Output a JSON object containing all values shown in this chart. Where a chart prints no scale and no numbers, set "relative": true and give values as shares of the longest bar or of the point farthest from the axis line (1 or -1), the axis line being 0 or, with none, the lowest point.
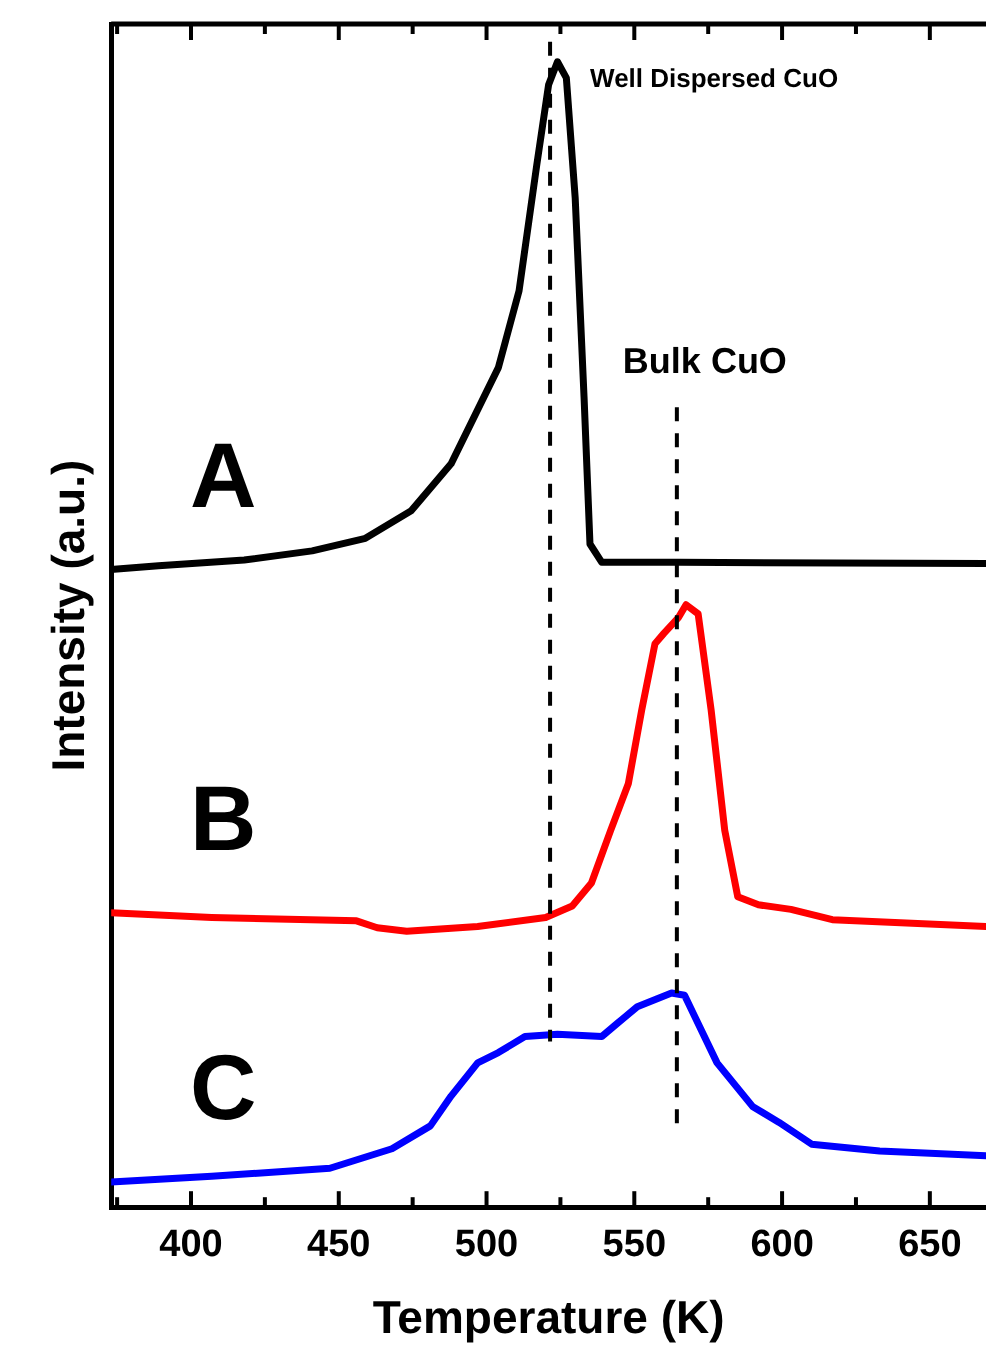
{
  "chart_data": {
    "type": "line",
    "relative": true,
    "xlabel": "Temperature (K)",
    "ylabel": "Intensity (a.u.)",
    "xlim": [
      373,
      669
    ],
    "xticks": [
      {
        "value": 375,
        "label": null
      },
      400,
      {
        "value": 425,
        "label": null
      },
      450,
      {
        "value": 475,
        "label": null
      },
      500,
      {
        "value": 525,
        "label": null
      },
      550,
      {
        "value": 575,
        "label": null
      },
      600,
      {
        "value": 625,
        "label": null
      },
      650
    ],
    "grid": false,
    "legend": false,
    "marker": "none",
    "line_style": "solid",
    "ref_lines": [
      {
        "axis": "x",
        "value": 521.5,
        "label": "Well Dispersed CuO",
        "color": "#000000",
        "line_style": "dashed"
      },
      {
        "axis": "x",
        "value": 564.4,
        "label": "Bulk CuO",
        "color": "#000000",
        "line_style": "dashed"
      }
    ],
    "series": [
      {
        "name": "A",
        "color": "#000000",
        "x": [
          374,
          389,
          418,
          441,
          459,
          474.5,
          488,
          504,
          511,
          517,
          521,
          524,
          527,
          530,
          533,
          535,
          539,
          565,
          669
        ],
        "values": [
          0.557,
          0.56,
          0.565,
          0.573,
          0.584,
          0.608,
          0.649,
          0.733,
          0.8,
          0.91,
          0.98,
          1.0,
          0.986,
          0.881,
          0.707,
          0.579,
          0.563,
          0.563,
          0.562
        ]
      },
      {
        "name": "B",
        "color": "#ff0000",
        "x": [
          373,
          407,
          456,
          463,
          473,
          497,
          520,
          529,
          535.5,
          542,
          548,
          552.5,
          557,
          560,
          565,
          567.5,
          571.6,
          576,
          580.6,
          585,
          592,
          603,
          617,
          669
        ],
        "values": [
          0.257,
          0.253,
          0.25,
          0.244,
          0.241,
          0.245,
          0.253,
          0.263,
          0.283,
          0.329,
          0.37,
          0.434,
          0.492,
          0.501,
          0.515,
          0.526,
          0.518,
          0.434,
          0.329,
          0.271,
          0.264,
          0.26,
          0.251,
          0.245
        ]
      },
      {
        "name": "C",
        "color": "#0000ff",
        "x": [
          373,
          407,
          447,
          468,
          481,
          488,
          497,
          504,
          513,
          524,
          539,
          544.5,
          551,
          562.6,
          567,
          578,
          590,
          599,
          610,
          633,
          669
        ],
        "values": [
          0.022,
          0.027,
          0.034,
          0.051,
          0.071,
          0.097,
          0.126,
          0.135,
          0.149,
          0.151,
          0.149,
          0.161,
          0.175,
          0.187,
          0.185,
          0.126,
          0.088,
          0.074,
          0.055,
          0.049,
          0.045
        ]
      }
    ]
  }
}
